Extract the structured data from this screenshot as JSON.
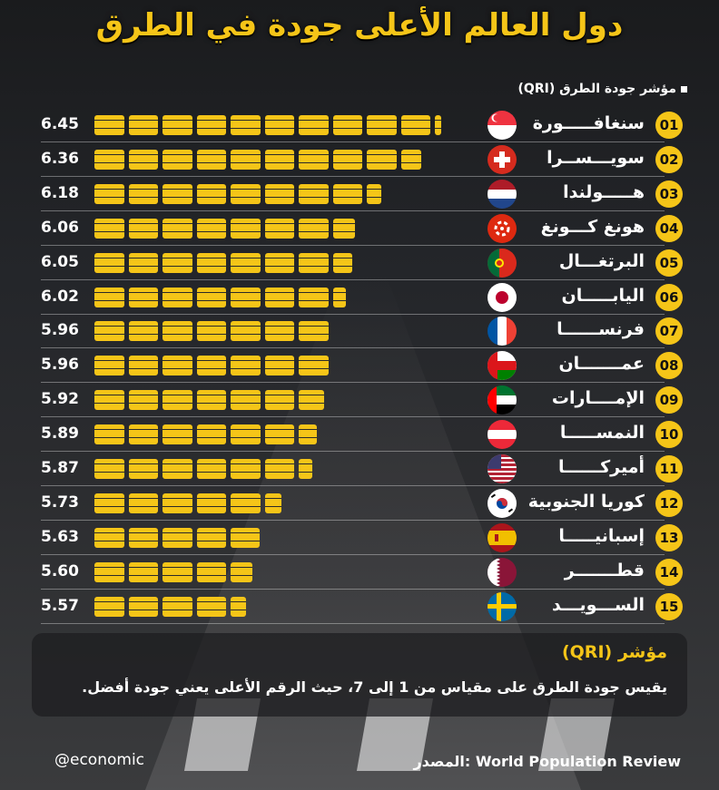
{
  "title": "دول العالم الأعلى جودة في الطرق",
  "legend": "مؤشر جودة الطرق (QRI)",
  "colors": {
    "accent": "#f5c518",
    "background": "#24262a",
    "text": "#ffffff"
  },
  "chart_data": {
    "type": "bar",
    "orientation": "horizontal",
    "series_name": "مؤشر جودة الطرق (QRI)",
    "xlim": [
      0,
      7
    ],
    "rows": [
      {
        "rank": "01",
        "country": "سنغافـــــورة",
        "value": 6.45,
        "label": "6.45",
        "flag": "singapore-flag-icon"
      },
      {
        "rank": "02",
        "country": "سويـــســرا",
        "value": 6.36,
        "label": "6.36",
        "flag": "switzerland-flag-icon"
      },
      {
        "rank": "03",
        "country": "هـــــولندا",
        "value": 6.18,
        "label": "6.18",
        "flag": "netherlands-flag-icon"
      },
      {
        "rank": "04",
        "country": "هونغ كـــونغ",
        "value": 6.06,
        "label": "6.06",
        "flag": "hongkong-flag-icon"
      },
      {
        "rank": "05",
        "country": "البرتغـــال",
        "value": 6.05,
        "label": "6.05",
        "flag": "portugal-flag-icon"
      },
      {
        "rank": "06",
        "country": "اليابـــــان",
        "value": 6.02,
        "label": "6.02",
        "flag": "japan-flag-icon"
      },
      {
        "rank": "07",
        "country": "فرنســــــا",
        "value": 5.96,
        "label": "5.96",
        "flag": "france-flag-icon"
      },
      {
        "rank": "08",
        "country": "عمـــــــان",
        "value": 5.96,
        "label": "5.96",
        "flag": "oman-flag-icon"
      },
      {
        "rank": "09",
        "country": "الإمــــارات",
        "value": 5.92,
        "label": "5.92",
        "flag": "uae-flag-icon"
      },
      {
        "rank": "10",
        "country": "النمســـــا",
        "value": 5.89,
        "label": "5.89",
        "flag": "austria-flag-icon"
      },
      {
        "rank": "11",
        "country": "أميركــــــا",
        "value": 5.87,
        "label": "5.87",
        "flag": "usa-flag-icon"
      },
      {
        "rank": "12",
        "country": "كوريا الجنوبية",
        "value": 5.73,
        "label": "5.73",
        "flag": "south-korea-flag-icon"
      },
      {
        "rank": "13",
        "country": "إسبانيـــــا",
        "value": 5.63,
        "label": "5.63",
        "flag": "spain-flag-icon"
      },
      {
        "rank": "14",
        "country": "قطـــــــر",
        "value": 5.6,
        "label": "5.60",
        "flag": "qatar-flag-icon"
      },
      {
        "rank": "15",
        "country": "الســـويـــد",
        "value": 5.57,
        "label": "5.57",
        "flag": "sweden-flag-icon"
      }
    ]
  },
  "info": {
    "title": "مؤشر (QRI)",
    "text": "يقيس جودة الطرق على مقياس من 1 إلى 7، حيث الرقم الأعلى يعني جودة أفضل."
  },
  "handle": "@economic",
  "source": "المصدر: World Population Review"
}
